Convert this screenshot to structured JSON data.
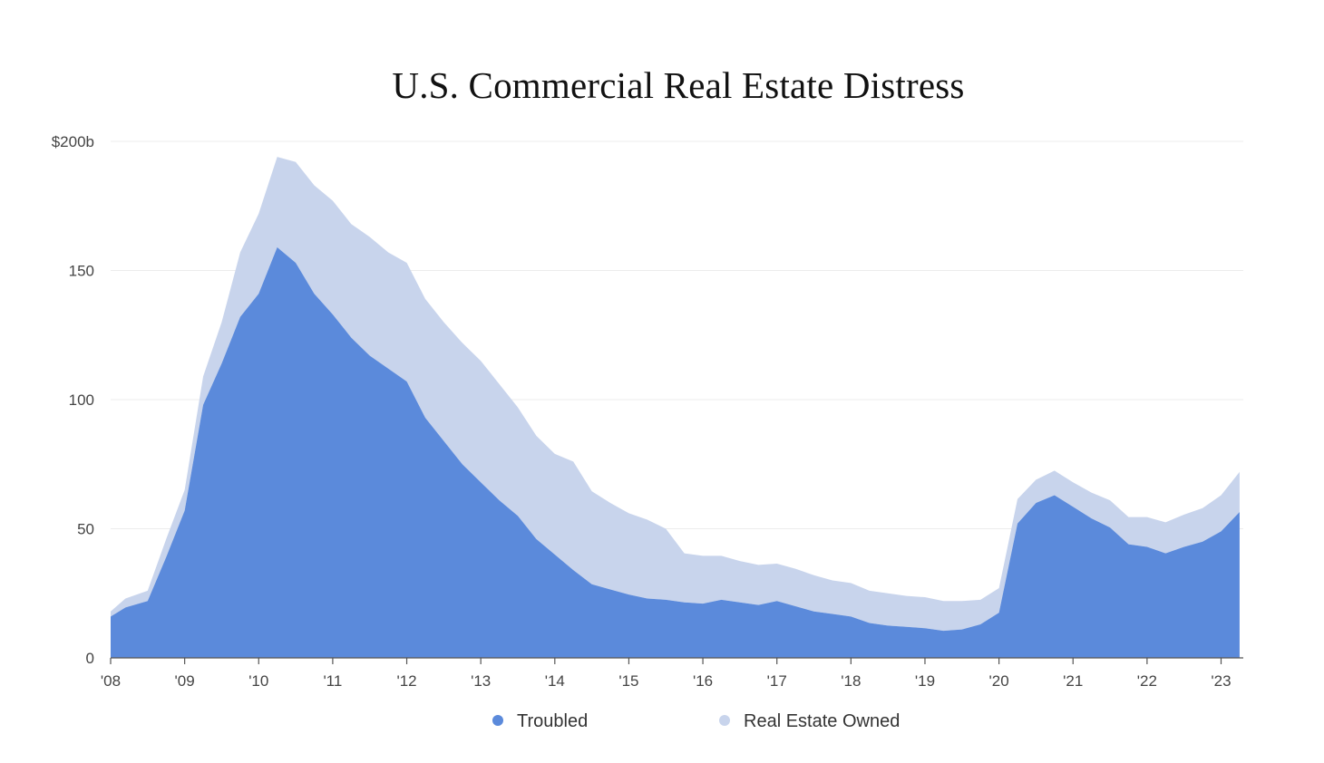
{
  "chart_data": {
    "type": "area",
    "stacked": true,
    "title": "U.S. Commercial Real Estate Distress",
    "xlabel": "",
    "ylabel": "",
    "y_tick_labels": [
      "0",
      "50",
      "100",
      "150",
      "$200b"
    ],
    "y_ticks": [
      0,
      50,
      100,
      150,
      200
    ],
    "ylim": [
      0,
      200
    ],
    "x_tick_labels": [
      "'08",
      "'09",
      "'10",
      "'11",
      "'12",
      "'13",
      "'14",
      "'15",
      "'16",
      "'17",
      "'18",
      "'19",
      "'20",
      "'21",
      "'22",
      "'23"
    ],
    "x_ticks": [
      2008,
      2009,
      2010,
      2011,
      2012,
      2013,
      2014,
      2015,
      2016,
      2017,
      2018,
      2019,
      2020,
      2021,
      2022,
      2023
    ],
    "xlim": [
      2008,
      2023.3
    ],
    "grid": true,
    "legend_position": "bottom-center",
    "x": [
      2008.0,
      2008.2,
      2008.5,
      2008.75,
      2009.0,
      2009.25,
      2009.5,
      2009.75,
      2010.0,
      2010.25,
      2010.5,
      2010.75,
      2011.0,
      2011.25,
      2011.5,
      2011.75,
      2012.0,
      2012.25,
      2012.5,
      2012.75,
      2013.0,
      2013.25,
      2013.5,
      2013.75,
      2014.0,
      2014.25,
      2014.5,
      2014.75,
      2015.0,
      2015.25,
      2015.5,
      2015.75,
      2016.0,
      2016.25,
      2016.5,
      2016.75,
      2017.0,
      2017.25,
      2017.5,
      2017.75,
      2018.0,
      2018.25,
      2018.5,
      2018.75,
      2019.0,
      2019.25,
      2019.5,
      2019.75,
      2020.0,
      2020.25,
      2020.5,
      2020.75,
      2021.0,
      2021.25,
      2021.5,
      2021.75,
      2022.0,
      2022.25,
      2022.5,
      2022.75,
      2023.0,
      2023.25
    ],
    "series": [
      {
        "name": "Troubled",
        "color": "#5B8ADB",
        "values": [
          16,
          19.5,
          22,
          39,
          57,
          98,
          114,
          132,
          141,
          159,
          153,
          141,
          133,
          124,
          117,
          112,
          107,
          93,
          84,
          75,
          68,
          61,
          55,
          46,
          40,
          34,
          28.5,
          26.5,
          24.5,
          23,
          22.5,
          21.5,
          21,
          22.5,
          21.5,
          20.5,
          22,
          20,
          18,
          17,
          16,
          13.5,
          12.5,
          12,
          11.5,
          10.5,
          11,
          13,
          17.5,
          52,
          60,
          63,
          58.5,
          54,
          50.5,
          44,
          43,
          40.5,
          43,
          45,
          49,
          56.5
        ]
      },
      {
        "name": "Real Estate Owned",
        "color": "#C8D4EC",
        "values": [
          2,
          3.5,
          4,
          7,
          8,
          11,
          16,
          25,
          31,
          35,
          39,
          42,
          44,
          44,
          46,
          45,
          46,
          46,
          46,
          47,
          47,
          45,
          42,
          40,
          39,
          42,
          36,
          33.5,
          31.5,
          30.5,
          27.5,
          19,
          18.5,
          17,
          16,
          15.5,
          14.5,
          14.5,
          14,
          13,
          13,
          12.5,
          12.5,
          12,
          12,
          11.5,
          11,
          9.5,
          9.5,
          9.5,
          9,
          9.5,
          9.5,
          10,
          10.5,
          10.5,
          11.5,
          12,
          12.5,
          13,
          14,
          15.5
        ]
      }
    ]
  }
}
